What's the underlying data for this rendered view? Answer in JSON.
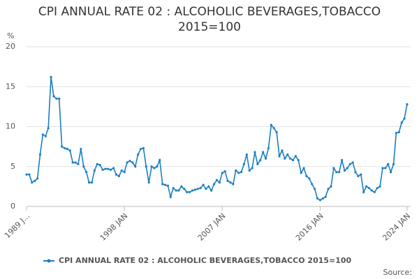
{
  "chart_data": {
    "type": "line",
    "title": "CPI ANNUAL RATE 02 : ALCOHOLIC BEVERAGES,TOBACCO 2015=100",
    "y_label": "%",
    "source": "Source:",
    "x": [
      "1989 JAN",
      "1989 APR",
      "1989 JUL",
      "1989 OCT",
      "1990 JAN",
      "1990 APR",
      "1990 JUL",
      "1990 OCT",
      "1991 JAN",
      "1991 APR",
      "1991 JUL",
      "1991 OCT",
      "1992 JAN",
      "1992 APR",
      "1992 JUL",
      "1992 OCT",
      "1993 JAN",
      "1993 APR",
      "1993 JUL",
      "1993 OCT",
      "1994 JAN",
      "1994 APR",
      "1994 JUL",
      "1994 OCT",
      "1995 JAN",
      "1995 APR",
      "1995 JUL",
      "1995 OCT",
      "1996 JAN",
      "1996 APR",
      "1996 JUL",
      "1996 OCT",
      "1997 JAN",
      "1997 APR",
      "1997 JUL",
      "1997 OCT",
      "1998 JAN",
      "1998 APR",
      "1998 JUL",
      "1998 OCT",
      "1999 JAN",
      "1999 APR",
      "1999 JUL",
      "1999 OCT",
      "2000 JAN",
      "2000 APR",
      "2000 JUL",
      "2000 OCT",
      "2001 JAN",
      "2001 APR",
      "2001 JUL",
      "2001 OCT",
      "2002 JAN",
      "2002 APR",
      "2002 JUL",
      "2002 OCT",
      "2003 JAN",
      "2003 APR",
      "2003 JUL",
      "2003 OCT",
      "2004 JAN",
      "2004 APR",
      "2004 JUL",
      "2004 OCT",
      "2005 JAN",
      "2005 APR",
      "2005 JUL",
      "2005 OCT",
      "2006 JAN",
      "2006 APR",
      "2006 JUL",
      "2006 OCT",
      "2007 JAN",
      "2007 APR",
      "2007 JUL",
      "2007 OCT",
      "2008 JAN",
      "2008 APR",
      "2008 JUL",
      "2008 OCT",
      "2009 JAN",
      "2009 APR",
      "2009 JUL",
      "2009 OCT",
      "2010 JAN",
      "2010 APR",
      "2010 JUL",
      "2010 OCT",
      "2011 JAN",
      "2011 APR",
      "2011 JUL",
      "2011 OCT",
      "2012 JAN",
      "2012 APR",
      "2012 JUL",
      "2012 OCT",
      "2013 JAN",
      "2013 APR",
      "2013 JUL",
      "2013 OCT",
      "2014 JAN",
      "2014 APR",
      "2014 JUL",
      "2014 OCT",
      "2015 JAN",
      "2015 APR",
      "2015 JUL",
      "2015 OCT",
      "2016 JAN",
      "2016 APR",
      "2016 JUL",
      "2016 OCT",
      "2017 JAN",
      "2017 APR",
      "2017 JUL",
      "2017 OCT",
      "2018 JAN",
      "2018 APR",
      "2018 JUL",
      "2018 OCT",
      "2019 JAN",
      "2019 APR",
      "2019 JUL",
      "2019 OCT",
      "2020 JAN",
      "2020 APR",
      "2020 JUL",
      "2020 OCT",
      "2021 JAN",
      "2021 APR",
      "2021 JUL",
      "2021 OCT",
      "2022 JAN",
      "2022 APR",
      "2022 JUL",
      "2022 OCT",
      "2023 JAN",
      "2023 APR",
      "2023 JUL",
      "2023 OCT",
      "2024 JAN"
    ],
    "series": [
      {
        "name": "CPI ANNUAL RATE 02 : ALCOHOLIC BEVERAGES,TOBACCO 2015=100",
        "color": "#1a7fc1",
        "values": [
          4.0,
          4.0,
          3.0,
          3.2,
          3.5,
          6.5,
          9.0,
          8.8,
          9.8,
          16.2,
          13.8,
          13.5,
          13.5,
          7.5,
          7.3,
          7.2,
          7.0,
          5.5,
          5.5,
          5.3,
          7.2,
          5.0,
          4.3,
          3.0,
          3.0,
          4.5,
          5.3,
          5.2,
          4.6,
          4.7,
          4.7,
          4.6,
          4.8,
          4.0,
          3.8,
          4.5,
          4.3,
          5.5,
          5.7,
          5.5,
          5.0,
          6.5,
          7.2,
          7.3,
          5.0,
          3.0,
          5.0,
          4.8,
          5.0,
          5.8,
          2.8,
          2.7,
          2.6,
          1.2,
          2.3,
          2.0,
          2.0,
          2.5,
          2.2,
          1.8,
          1.8,
          2.0,
          2.1,
          2.2,
          2.3,
          2.7,
          2.2,
          2.5,
          2.0,
          2.8,
          3.3,
          3.0,
          4.2,
          4.4,
          3.2,
          3.0,
          2.8,
          4.5,
          4.2,
          4.3,
          5.3,
          6.5,
          4.5,
          4.8,
          6.8,
          5.3,
          5.8,
          6.8,
          6.0,
          7.3,
          10.2,
          9.8,
          9.3,
          6.3,
          7.0,
          6.0,
          6.5,
          6.0,
          5.8,
          6.3,
          5.8,
          4.2,
          4.8,
          3.8,
          3.5,
          2.8,
          2.2,
          1.0,
          0.8,
          1.0,
          1.2,
          2.2,
          2.5,
          4.8,
          4.3,
          4.3,
          5.8,
          4.5,
          4.8,
          5.3,
          5.5,
          4.3,
          3.8,
          4.0,
          1.8,
          2.5,
          2.3,
          2.0,
          1.8,
          2.3,
          2.5,
          4.8,
          4.8,
          5.3,
          4.3,
          5.3,
          9.2,
          9.3,
          10.5,
          11.0,
          12.8
        ]
      }
    ],
    "ylim": [
      0,
      20
    ],
    "yticks": [
      0,
      5,
      10,
      15,
      20
    ],
    "xticks": [
      {
        "value": "1989 JAN",
        "label": "1989 J..."
      },
      "1998 JAN",
      "2007 JAN",
      "2016 JAN",
      "2024 JAN"
    ],
    "grid": true,
    "legend": "bottom"
  }
}
